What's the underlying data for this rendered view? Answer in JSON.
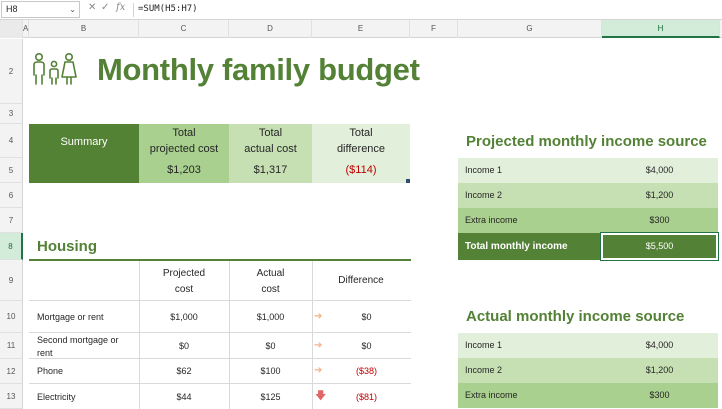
{
  "formula_bar": {
    "name_box": "H8",
    "formula": "=SUM(H5:H7)",
    "fx_label": "fx"
  },
  "columns": [
    "A",
    "B",
    "C",
    "D",
    "E",
    "F",
    "G",
    "H"
  ],
  "rows": [
    "2",
    "3",
    "4",
    "5",
    "6",
    "7",
    "8",
    "9",
    "10",
    "11",
    "12",
    "13"
  ],
  "selected_cell": "H8",
  "title": "Monthly family budget",
  "summary": {
    "label": "Summary",
    "projected_header_1": "Total",
    "projected_header_2": "projected cost",
    "projected_value": "$1,203",
    "actual_header_1": "Total",
    "actual_header_2": "actual cost",
    "actual_value": "$1,317",
    "difference_header_1": "Total",
    "difference_header_2": "difference",
    "difference_value": "($114)"
  },
  "housing": {
    "title": "Housing",
    "headers": {
      "projected_1": "Projected",
      "projected_2": "cost",
      "actual_1": "Actual",
      "actual_2": "cost",
      "difference": "Difference"
    },
    "rows": [
      {
        "label_1": "Mortgage or rent",
        "label_2": "",
        "projected": "$1,000",
        "actual": "$1,000",
        "difference": "$0",
        "arrow": "right"
      },
      {
        "label_1": "Second mortgage or",
        "label_2": "rent",
        "projected": "$0",
        "actual": "$0",
        "difference": "$0",
        "arrow": "right"
      },
      {
        "label_1": "Phone",
        "label_2": "",
        "projected": "$62",
        "actual": "$100",
        "difference": "($38)",
        "arrow": "right"
      },
      {
        "label_1": "Electricity",
        "label_2": "",
        "projected": "$44",
        "actual": "$125",
        "difference": "($81)",
        "arrow": "down"
      }
    ]
  },
  "projected_income": {
    "title": "Projected monthly income source",
    "rows": [
      {
        "label": "Income 1",
        "value": "$4,000"
      },
      {
        "label": "Income 2",
        "value": "$1,200"
      },
      {
        "label": "Extra income",
        "value": "$300"
      }
    ],
    "total_label": "Total monthly income",
    "total_value": "$5,500"
  },
  "actual_income": {
    "title": "Actual monthly income source",
    "rows": [
      {
        "label": "Income 1",
        "value": "$4,000"
      },
      {
        "label": "Income 2",
        "value": "$1,200"
      },
      {
        "label": "Extra income",
        "value": "$300"
      }
    ]
  },
  "colors": {
    "dark_green": "#538135",
    "mid_green": "#a9d08e",
    "light_green": "#c6e0b4",
    "pale_green": "#e2efda",
    "negative": "#c00000",
    "arrow_flat": "#f4b183",
    "arrow_down": "#e06666"
  }
}
